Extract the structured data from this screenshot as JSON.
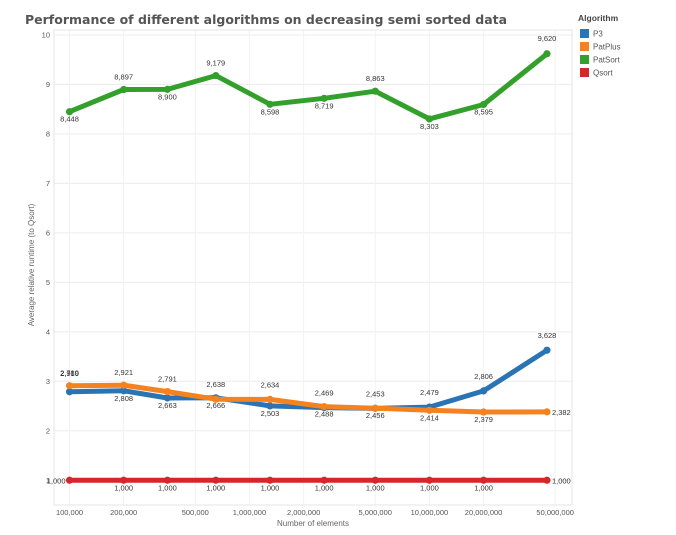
{
  "chart_data": {
    "type": "line",
    "title": "Performance of different algorithms on decreasing semi sorted data",
    "xlabel": "Number of elements",
    "ylabel": "Average relative runtime (to Qsort)",
    "x_scale": "log",
    "x_tick_labels": [
      "100,000",
      "200,000",
      "500,000",
      "1,000,000",
      "2,000,000",
      "5,000,000",
      "10,000,000",
      "20,000,000",
      "50,000,000"
    ],
    "x_ticks": [
      100000,
      200000,
      500000,
      1000000,
      2000000,
      5000000,
      10000000,
      20000000,
      50000000
    ],
    "x": [
      100000,
      200000,
      350000,
      650000,
      1300000,
      2600000,
      5000000,
      10000000,
      20000000,
      45000000
    ],
    "ylim": [
      0.5,
      10.1
    ],
    "y_ticks": [
      1,
      2,
      3,
      4,
      5,
      6,
      7,
      8,
      9,
      10
    ],
    "grid": true,
    "legend": {
      "title": "Algorithm",
      "placement": "top-right"
    },
    "series": [
      {
        "name": "P3",
        "color": "#2b74b3",
        "values": [
          2.789,
          2.808,
          2.663,
          2.666,
          2.503,
          2.469,
          2.453,
          2.479,
          2.806,
          3.628
        ],
        "labels": [
          "2,789",
          "2,808",
          "2,663",
          "2,666",
          "2,503",
          "2,469",
          "2,453",
          "2,479",
          "2,806",
          "3,628"
        ]
      },
      {
        "name": "PatPlus",
        "color": "#f58220",
        "values": [
          2.91,
          2.921,
          2.791,
          2.638,
          2.634,
          2.488,
          2.456,
          2.414,
          2.379,
          2.382
        ],
        "labels": [
          "2,910",
          "2,921",
          "2,791",
          "2,638",
          "2,634",
          "2,488",
          "2,456",
          "2,414",
          "2,379",
          "2,382"
        ]
      },
      {
        "name": "PatSort",
        "color": "#33a02c",
        "values": [
          8.448,
          8.897,
          8.9,
          9.179,
          8.598,
          8.719,
          8.863,
          8.303,
          8.595,
          9.62
        ],
        "labels": [
          "8,448",
          "8,897",
          "8,900",
          "9,179",
          "8,598",
          "8,719",
          "8,863",
          "8,303",
          "8,595",
          "9,620"
        ]
      },
      {
        "name": "Qsort",
        "color": "#d62728",
        "values": [
          1,
          1,
          1,
          1,
          1,
          1,
          1,
          1,
          1,
          1
        ],
        "labels": [
          "1,000",
          "1,000",
          "1,000",
          "1,000",
          "1,000",
          "1,000",
          "1,000",
          "1,000",
          "1,000",
          "1,000"
        ]
      }
    ]
  }
}
